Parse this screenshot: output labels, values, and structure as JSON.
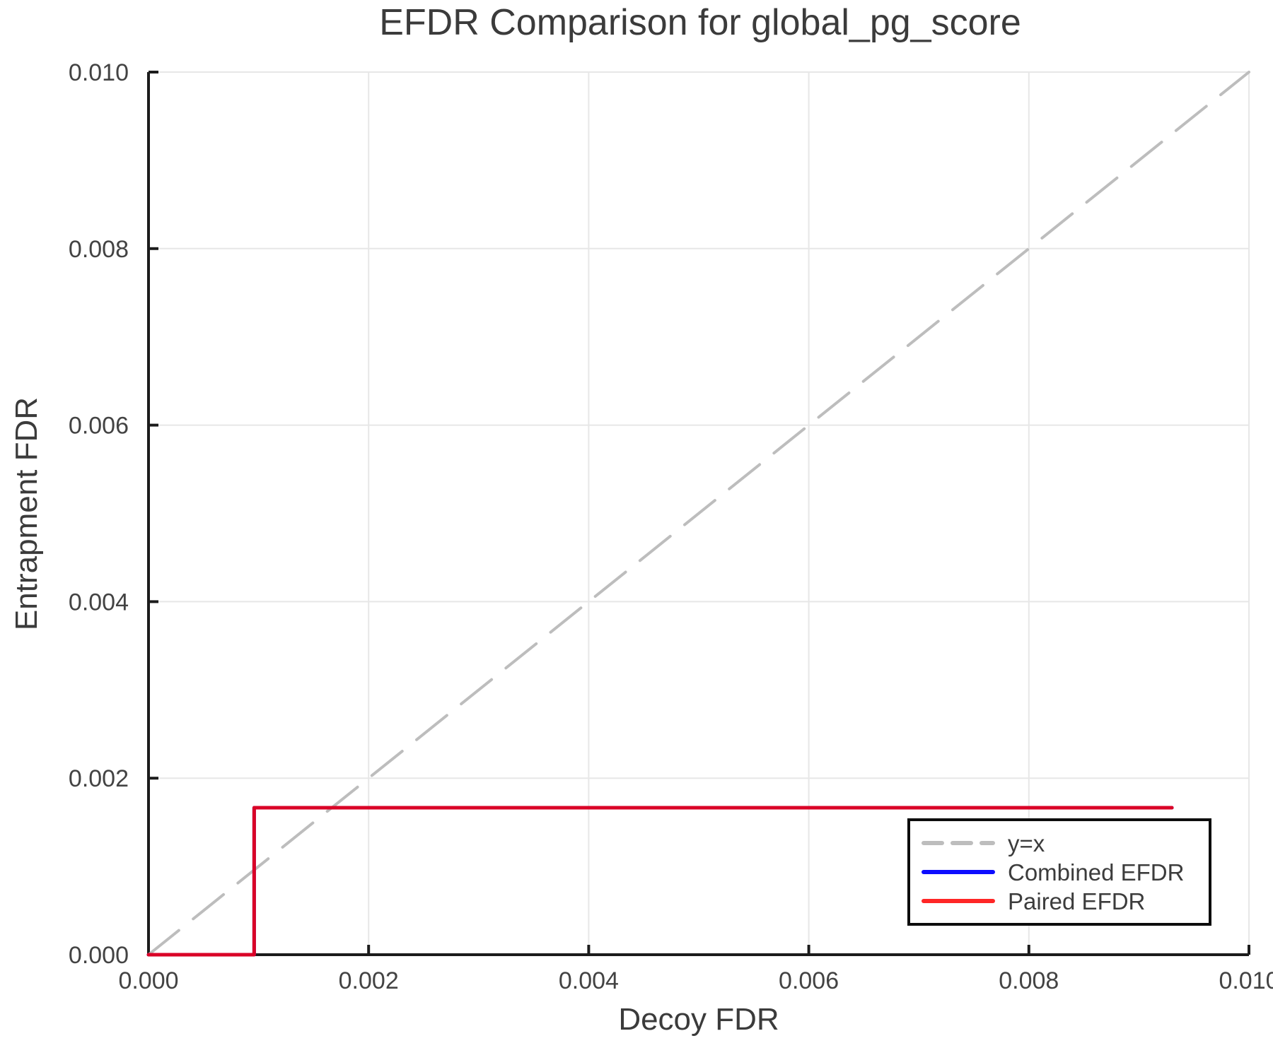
{
  "title": "EFDR Comparison for global_pg_score",
  "colors": {
    "axis": "#1c1c1c",
    "grid": "#e7e7e7",
    "text": "#3b3b3b",
    "identity_line": "#bdbdbd",
    "combined_efdr": "#0c0cff",
    "paired_efdr": "#ff0000",
    "legend_border": "#0d0d0d"
  },
  "chart_data": {
    "type": "line",
    "title": "EFDR Comparison for global_pg_score",
    "xlabel": "Decoy FDR",
    "ylabel": "Entrapment FDR",
    "xlim": [
      0.0,
      0.01
    ],
    "ylim": [
      0.0,
      0.01
    ],
    "grid": true,
    "legend_position": "bottom-right",
    "xticks": {
      "values": [
        0.0,
        0.002,
        0.004,
        0.006,
        0.008,
        0.01
      ],
      "labels": [
        "0.000",
        "0.002",
        "0.004",
        "0.006",
        "0.008",
        "0.010"
      ]
    },
    "yticks": {
      "values": [
        0.0,
        0.002,
        0.004,
        0.006,
        0.008,
        0.01
      ],
      "labels": [
        "0.000",
        "0.002",
        "0.004",
        "0.006",
        "0.008",
        "0.010"
      ]
    },
    "series": [
      {
        "name": "y=x",
        "color": "#bdbdbd",
        "style": "dashed",
        "width": 4,
        "opacity": 1.0,
        "x": [
          0.0,
          0.01
        ],
        "y": [
          0.0,
          0.01
        ]
      },
      {
        "name": "Combined EFDR",
        "color": "#0c0cff",
        "style": "solid",
        "width": 5,
        "opacity": 1.0,
        "x": [
          0.0,
          0.00096,
          0.00096,
          0.0093
        ],
        "y": [
          0.0,
          0.0,
          0.001665,
          0.001665
        ]
      },
      {
        "name": "Paired EFDR",
        "color": "#ff0000",
        "style": "solid",
        "width": 5,
        "opacity": 0.85,
        "x": [
          0.0,
          0.00096,
          0.00096,
          0.0093
        ],
        "y": [
          0.0,
          0.0,
          0.001665,
          0.001665
        ]
      }
    ]
  }
}
